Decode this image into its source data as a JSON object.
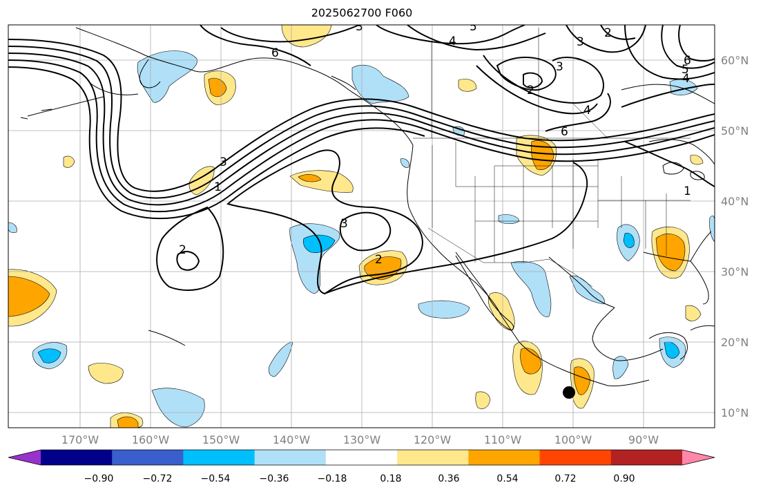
{
  "title": "2025062700 F060",
  "longitude_labels": [
    "170°W",
    "160°W",
    "150°W",
    "140°W",
    "130°W",
    "120°W",
    "110°W",
    "100°W",
    "90°W"
  ],
  "latitude_labels": [
    "60°N",
    "50°N",
    "40°N",
    "30°N",
    "20°N",
    "10°N"
  ],
  "colorbar": {
    "tick_labels": [
      "−0.90",
      "−0.72",
      "−0.54",
      "−0.36",
      "−0.18",
      "0.18",
      "0.36",
      "0.54",
      "0.72",
      "0.90"
    ],
    "colors": [
      "#9932cc",
      "#00008b",
      "#3a5fcd",
      "#00bfff",
      "#b0e0f8",
      "#ffffff",
      "#ffe88c",
      "#ffa500",
      "#ff4500",
      "#b22222",
      "#ff88aa"
    ]
  },
  "contour_labels": [
    "6",
    "5",
    "4",
    "3",
    "2",
    "1"
  ],
  "coastline_color": "#000000",
  "grid_color": "#aaaaaa"
}
